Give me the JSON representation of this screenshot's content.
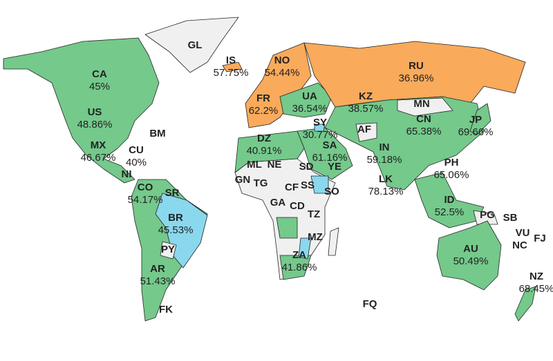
{
  "colors": {
    "green": "#74c98b",
    "orange": "#f9aa5b",
    "blue": "#8ad8ee",
    "gray": "#f0f0f0",
    "border": "#222222"
  },
  "countries": [
    {
      "code": "GL",
      "value": "",
      "fill": "gray"
    },
    {
      "code": "IS",
      "value": "57.75%",
      "fill": "orange"
    },
    {
      "code": "NO",
      "value": "54.44%",
      "fill": "orange"
    },
    {
      "code": "RU",
      "value": "36.96%",
      "fill": "orange"
    },
    {
      "code": "CA",
      "value": "45%",
      "fill": "green"
    },
    {
      "code": "FR",
      "value": "62.2%",
      "fill": "orange"
    },
    {
      "code": "UA",
      "value": "36.54%",
      "fill": "orange"
    },
    {
      "code": "KZ",
      "value": "38.57%",
      "fill": "green"
    },
    {
      "code": "MN",
      "value": "",
      "fill": "gray"
    },
    {
      "code": "CN",
      "value": "65.38%",
      "fill": "green"
    },
    {
      "code": "US",
      "value": "48.86%",
      "fill": "green"
    },
    {
      "code": "SY",
      "value": "30.77%",
      "fill": "blue"
    },
    {
      "code": "JP",
      "value": "69.66%",
      "fill": "green"
    },
    {
      "code": "AF",
      "value": "",
      "fill": "gray"
    },
    {
      "code": "BM",
      "value": "",
      "fill": "gray"
    },
    {
      "code": "DZ",
      "value": "40.91%",
      "fill": "green"
    },
    {
      "code": "SA",
      "value": "61.16%",
      "fill": "green"
    },
    {
      "code": "MX",
      "value": "46.67%",
      "fill": "green"
    },
    {
      "code": "CU",
      "value": "40%",
      "fill": "green"
    },
    {
      "code": "IN",
      "value": "59.18%",
      "fill": "green"
    },
    {
      "code": "ML",
      "value": "",
      "fill": "gray"
    },
    {
      "code": "NE",
      "value": "",
      "fill": "gray"
    },
    {
      "code": "SD",
      "value": "",
      "fill": "gray"
    },
    {
      "code": "YE",
      "value": "",
      "fill": "gray"
    },
    {
      "code": "PH",
      "value": "65.06%",
      "fill": "green"
    },
    {
      "code": "NI",
      "value": "",
      "fill": "gray"
    },
    {
      "code": "GN",
      "value": "",
      "fill": "gray"
    },
    {
      "code": "TG",
      "value": "",
      "fill": "gray"
    },
    {
      "code": "CF",
      "value": "",
      "fill": "gray"
    },
    {
      "code": "SS",
      "value": "",
      "fill": "gray"
    },
    {
      "code": "LK",
      "value": "78.13%",
      "fill": "green"
    },
    {
      "code": "SO",
      "value": "",
      "fill": "gray"
    },
    {
      "code": "CO",
      "value": "54.17%",
      "fill": "green"
    },
    {
      "code": "SR",
      "value": "",
      "fill": "gray"
    },
    {
      "code": "GA",
      "value": "",
      "fill": "gray"
    },
    {
      "code": "CD",
      "value": "",
      "fill": "gray"
    },
    {
      "code": "ID",
      "value": "52.5%",
      "fill": "green"
    },
    {
      "code": "BR",
      "value": "45.53%",
      "fill": "blue"
    },
    {
      "code": "PG",
      "value": "",
      "fill": "gray"
    },
    {
      "code": "SB",
      "value": "",
      "fill": "gray"
    },
    {
      "code": "TZ",
      "value": "",
      "fill": "gray"
    },
    {
      "code": "VU",
      "value": "",
      "fill": "gray"
    },
    {
      "code": "FJ",
      "value": "",
      "fill": "gray"
    },
    {
      "code": "NC",
      "value": "",
      "fill": "gray"
    },
    {
      "code": "MZ",
      "value": "",
      "fill": "blue"
    },
    {
      "code": "PY",
      "value": "",
      "fill": "gray"
    },
    {
      "code": "AU",
      "value": "50.49%",
      "fill": "green"
    },
    {
      "code": "AR",
      "value": "51.43%",
      "fill": "green"
    },
    {
      "code": "ZA",
      "value": "41.86%",
      "fill": "green"
    },
    {
      "code": "NZ",
      "value": "68.45%",
      "fill": "green"
    },
    {
      "code": "FQ",
      "value": "",
      "fill": "gray"
    },
    {
      "code": "FK",
      "value": "",
      "fill": "gray"
    }
  ]
}
